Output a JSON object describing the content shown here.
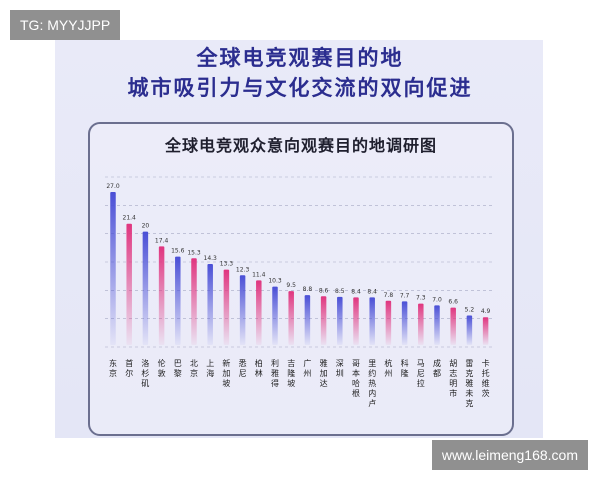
{
  "watermark_top": "TG: MYYJJPP",
  "watermark_bottom": "www.leimeng168.com",
  "headline": {
    "line1": "全球电竞观赛目的地",
    "line2": "城市吸引力与文化交流的双向促进"
  },
  "chart_data": {
    "type": "bar",
    "title": "全球电竞观众意向观赛目的地调研图",
    "categories": [
      "东京",
      "首尔",
      "洛杉矶",
      "伦敦",
      "巴黎",
      "北京",
      "上海",
      "新加坡",
      "悉尼",
      "柏林",
      "利雅得",
      "吉隆坡",
      "广州",
      "雅加达",
      "深圳",
      "哥本哈根",
      "里约热内卢",
      "杭州",
      "科隆",
      "马尼拉",
      "成都",
      "胡志明市",
      "雷克雅未克",
      "卡托维茨"
    ],
    "values": [
      27.0,
      21.4,
      20,
      17.4,
      15.6,
      15.3,
      14.3,
      13.3,
      12.3,
      11.4,
      10.3,
      9.5,
      8.8,
      8.6,
      8.5,
      8.4,
      8.4,
      7.8,
      7.7,
      7.3,
      7.0,
      6.6,
      5.2,
      4.9
    ],
    "value_labels": [
      "27.0",
      "21.4",
      "20",
      "17.4",
      "15.6",
      "15.3",
      "14.3",
      "13.3",
      "12.3",
      "11.4",
      "10.3",
      "9.5",
      "8.8",
      "8.6",
      "8.5",
      "8.4",
      "8.4",
      "7.8",
      "7.7",
      "7.3",
      "7.0",
      "6.6",
      "5.2",
      "4.9"
    ],
    "bar_colors": [
      "#4a4fd6",
      "#e0357f"
    ],
    "ylim": [
      0,
      30
    ],
    "grid": true,
    "xlabel": "",
    "ylabel": ""
  }
}
